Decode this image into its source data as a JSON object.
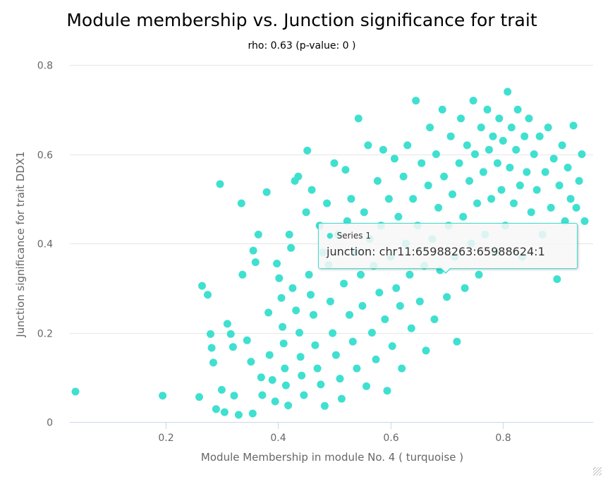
{
  "chart_data": {
    "type": "scatter",
    "title": "Module membership vs. Junction significance for trait",
    "subtitle": "rho: 0.63 (p-value: 0 )",
    "xlabel": "Module Membership in module No. 4 ( turquoise )",
    "ylabel": "Junction significance for trait DDX1",
    "xlim": [
      0.03,
      0.96
    ],
    "ylim": [
      0,
      0.8
    ],
    "x_ticks": [
      0.2,
      0.4,
      0.6,
      0.8
    ],
    "x_tick_labels": [
      "0.2",
      "0.4",
      "0.6",
      "0.8"
    ],
    "y_ticks": [
      0,
      0.2,
      0.4,
      0.6,
      0.8
    ],
    "y_tick_labels": [
      "0",
      "0.2",
      "0.4",
      "0.6",
      "0.8"
    ],
    "grid": "horizontal",
    "legend": "none",
    "series": [
      {
        "name": "Series 1",
        "color": "#40e0d0",
        "points": [
          [
            0.04,
            0.068
          ],
          [
            0.195,
            0.059
          ],
          [
            0.26,
            0.056
          ],
          [
            0.265,
            0.305
          ],
          [
            0.275,
            0.285
          ],
          [
            0.28,
            0.197
          ],
          [
            0.282,
            0.166
          ],
          [
            0.285,
            0.133
          ],
          [
            0.29,
            0.029
          ],
          [
            0.297,
            0.533
          ],
          [
            0.3,
            0.072
          ],
          [
            0.305,
            0.022
          ],
          [
            0.31,
            0.22
          ],
          [
            0.316,
            0.197
          ],
          [
            0.32,
            0.168
          ],
          [
            0.322,
            0.059
          ],
          [
            0.33,
            0.016
          ],
          [
            0.335,
            0.49
          ],
          [
            0.337,
            0.33
          ],
          [
            0.345,
            0.183
          ],
          [
            0.352,
            0.135
          ],
          [
            0.355,
            0.019
          ],
          [
            0.356,
            0.384
          ],
          [
            0.36,
            0.358
          ],
          [
            0.365,
            0.42
          ],
          [
            0.37,
            0.1
          ],
          [
            0.372,
            0.06
          ],
          [
            0.38,
            0.515
          ],
          [
            0.383,
            0.245
          ],
          [
            0.385,
            0.15
          ],
          [
            0.39,
            0.094
          ],
          [
            0.395,
            0.046
          ],
          [
            0.398,
            0.355
          ],
          [
            0.402,
            0.322
          ],
          [
            0.406,
            0.278
          ],
          [
            0.408,
            0.213
          ],
          [
            0.41,
            0.176
          ],
          [
            0.412,
            0.12
          ],
          [
            0.414,
            0.082
          ],
          [
            0.418,
            0.037
          ],
          [
            0.42,
            0.42
          ],
          [
            0.423,
            0.39
          ],
          [
            0.426,
            0.3
          ],
          [
            0.43,
            0.54
          ],
          [
            0.432,
            0.25
          ],
          [
            0.436,
            0.55
          ],
          [
            0.438,
            0.2
          ],
          [
            0.44,
            0.146
          ],
          [
            0.442,
            0.104
          ],
          [
            0.446,
            0.06
          ],
          [
            0.45,
            0.47
          ],
          [
            0.452,
            0.608
          ],
          [
            0.455,
            0.33
          ],
          [
            0.458,
            0.285
          ],
          [
            0.46,
            0.52
          ],
          [
            0.463,
            0.24
          ],
          [
            0.466,
            0.172
          ],
          [
            0.47,
            0.12
          ],
          [
            0.474,
            0.44
          ],
          [
            0.476,
            0.084
          ],
          [
            0.48,
            0.38
          ],
          [
            0.483,
            0.036
          ],
          [
            0.487,
            0.49
          ],
          [
            0.49,
            0.352
          ],
          [
            0.493,
            0.27
          ],
          [
            0.497,
            0.199
          ],
          [
            0.5,
            0.58
          ],
          [
            0.503,
            0.15
          ],
          [
            0.507,
            0.42
          ],
          [
            0.51,
            0.097
          ],
          [
            0.513,
            0.052
          ],
          [
            0.517,
            0.31
          ],
          [
            0.52,
            0.565
          ],
          [
            0.523,
            0.45
          ],
          [
            0.527,
            0.24
          ],
          [
            0.53,
            0.5
          ],
          [
            0.533,
            0.18
          ],
          [
            0.537,
            0.38
          ],
          [
            0.54,
            0.12
          ],
          [
            0.543,
            0.68
          ],
          [
            0.547,
            0.33
          ],
          [
            0.55,
            0.26
          ],
          [
            0.553,
            0.47
          ],
          [
            0.557,
            0.08
          ],
          [
            0.56,
            0.62
          ],
          [
            0.563,
            0.41
          ],
          [
            0.567,
            0.2
          ],
          [
            0.57,
            0.35
          ],
          [
            0.574,
            0.14
          ],
          [
            0.577,
            0.54
          ],
          [
            0.58,
            0.29
          ],
          [
            0.583,
            0.44
          ],
          [
            0.587,
            0.61
          ],
          [
            0.59,
            0.23
          ],
          [
            0.594,
            0.07
          ],
          [
            0.597,
            0.5
          ],
          [
            0.6,
            0.37
          ],
          [
            0.603,
            0.17
          ],
          [
            0.607,
            0.59
          ],
          [
            0.61,
            0.3
          ],
          [
            0.614,
            0.46
          ],
          [
            0.617,
            0.26
          ],
          [
            0.62,
            0.12
          ],
          [
            0.623,
            0.55
          ],
          [
            0.627,
            0.4
          ],
          [
            0.63,
            0.62
          ],
          [
            0.634,
            0.33
          ],
          [
            0.637,
            0.21
          ],
          [
            0.64,
            0.5
          ],
          [
            0.645,
            0.72
          ],
          [
            0.648,
            0.44
          ],
          [
            0.652,
            0.27
          ],
          [
            0.655,
            0.58
          ],
          [
            0.66,
            0.35
          ],
          [
            0.663,
            0.16
          ],
          [
            0.667,
            0.53
          ],
          [
            0.67,
            0.66
          ],
          [
            0.674,
            0.41
          ],
          [
            0.678,
            0.23
          ],
          [
            0.681,
            0.6
          ],
          [
            0.685,
            0.48
          ],
          [
            0.688,
            0.34
          ],
          [
            0.692,
            0.7
          ],
          [
            0.695,
            0.55
          ],
          [
            0.7,
            0.28
          ],
          [
            0.703,
            0.44
          ],
          [
            0.707,
            0.64
          ],
          [
            0.71,
            0.51
          ],
          [
            0.714,
            0.37
          ],
          [
            0.718,
            0.18
          ],
          [
            0.722,
            0.58
          ],
          [
            0.725,
            0.68
          ],
          [
            0.729,
            0.46
          ],
          [
            0.732,
            0.3
          ],
          [
            0.736,
            0.62
          ],
          [
            0.74,
            0.54
          ],
          [
            0.743,
            0.4
          ],
          [
            0.747,
            0.72
          ],
          [
            0.75,
            0.6
          ],
          [
            0.754,
            0.49
          ],
          [
            0.757,
            0.33
          ],
          [
            0.761,
            0.66
          ],
          [
            0.765,
            0.56
          ],
          [
            0.768,
            0.42
          ],
          [
            0.772,
            0.7
          ],
          [
            0.775,
            0.61
          ],
          [
            0.779,
            0.5
          ],
          [
            0.782,
            0.64
          ],
          [
            0.786,
            0.38
          ],
          [
            0.79,
            0.58
          ],
          [
            0.793,
            0.68
          ],
          [
            0.797,
            0.52
          ],
          [
            0.8,
            0.63
          ],
          [
            0.804,
            0.44
          ],
          [
            0.808,
            0.74
          ],
          [
            0.812,
            0.57
          ],
          [
            0.815,
            0.66
          ],
          [
            0.819,
            0.49
          ],
          [
            0.823,
            0.61
          ],
          [
            0.826,
            0.7
          ],
          [
            0.83,
            0.53
          ],
          [
            0.834,
            0.37
          ],
          [
            0.838,
            0.64
          ],
          [
            0.842,
            0.56
          ],
          [
            0.846,
            0.68
          ],
          [
            0.85,
            0.47
          ],
          [
            0.855,
            0.6
          ],
          [
            0.86,
            0.52
          ],
          [
            0.865,
            0.64
          ],
          [
            0.87,
            0.42
          ],
          [
            0.875,
            0.56
          ],
          [
            0.88,
            0.66
          ],
          [
            0.885,
            0.48
          ],
          [
            0.89,
            0.59
          ],
          [
            0.896,
            0.32
          ],
          [
            0.9,
            0.53
          ],
          [
            0.905,
            0.62
          ],
          [
            0.91,
            0.45
          ],
          [
            0.915,
            0.57
          ],
          [
            0.92,
            0.5
          ],
          [
            0.925,
            0.664
          ],
          [
            0.93,
            0.48
          ],
          [
            0.935,
            0.54
          ],
          [
            0.94,
            0.6
          ],
          [
            0.945,
            0.45
          ]
        ]
      }
    ]
  },
  "tooltip": {
    "series_marker": "●",
    "series_name": "Series 1",
    "point_label": "junction: chr11:65988263:65988624:1"
  }
}
